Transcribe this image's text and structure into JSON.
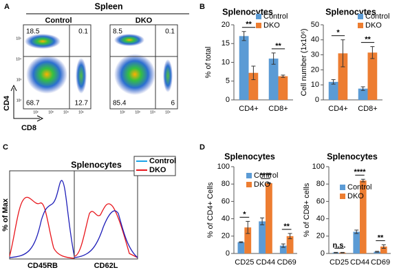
{
  "panel_labels": [
    "A",
    "B",
    "C",
    "D"
  ],
  "flow": {
    "title": "Spleen",
    "x_label": "CD8",
    "y_label": "CD4",
    "axis_ticks": [
      "10²",
      "10³",
      "10⁴",
      "10⁵"
    ],
    "samples": [
      {
        "name": "Control",
        "quadrants": [
          18.5,
          0.1,
          68.7,
          12.7
        ]
      },
      {
        "name": "DKO",
        "quadrants": [
          8.5,
          0.1,
          85.4,
          6
        ]
      }
    ]
  },
  "histogram": {
    "title": "Splenocytes",
    "x_labels": [
      "CD45RB",
      "CD62L"
    ],
    "y_label": "% of Max",
    "legend": [
      {
        "name": "Control",
        "color": "#1aa3e8"
      },
      {
        "name": "DKO",
        "color": "#e8151b"
      }
    ]
  },
  "chart_data": [
    {
      "type": "bar",
      "title": "Splenocytes",
      "y_label": "% of total",
      "categories": [
        "CD4+",
        "CD8+"
      ],
      "series": [
        {
          "name": "Control",
          "color": "#5b9bd5",
          "values": [
            17,
            11
          ],
          "errors": [
            1.2,
            1.5
          ]
        },
        {
          "name": "DKO",
          "color": "#ed7d31",
          "values": [
            7.2,
            6.3
          ],
          "errors": [
            1.8,
            0.3
          ]
        }
      ],
      "ylim": [
        0,
        20
      ],
      "yticks": [
        0,
        5,
        10,
        15,
        20
      ],
      "annotations": [
        "**",
        "**"
      ]
    },
    {
      "type": "bar",
      "title": "Splenocytes",
      "y_label": "Cell number (1x10⁶)",
      "categories": [
        "CD4+",
        "CD8+"
      ],
      "series": [
        {
          "name": "Control",
          "color": "#5b9bd5",
          "values": [
            12,
            7.5
          ],
          "errors": [
            1.5,
            1.2
          ]
        },
        {
          "name": "DKO",
          "color": "#ed7d31",
          "values": [
            31,
            31.5
          ],
          "errors": [
            9,
            4
          ]
        }
      ],
      "ylim": [
        0,
        50
      ],
      "yticks": [
        0,
        10,
        20,
        30,
        40,
        50
      ],
      "annotations": [
        "*",
        "**"
      ]
    },
    {
      "type": "bar",
      "title": "Splenocytes",
      "y_label": "% of  CD4+ Cells",
      "categories": [
        "CD25",
        "CD44",
        "CD69"
      ],
      "series": [
        {
          "name": "Control",
          "color": "#5b9bd5",
          "values": [
            13,
            37,
            9
          ],
          "errors": [
            0.5,
            4,
            2
          ]
        },
        {
          "name": "DKO",
          "color": "#ed7d31",
          "values": [
            30,
            81,
            20
          ],
          "errors": [
            7,
            0.5,
            3
          ]
        }
      ],
      "ylim": [
        0,
        100
      ],
      "yticks": [
        0,
        20,
        40,
        60,
        80,
        100
      ],
      "annotations": [
        "*",
        "****",
        "**"
      ]
    },
    {
      "type": "bar",
      "title": "Splenocytes",
      "y_label": "% of CD8+ cells",
      "categories": [
        "CD25",
        "CD44",
        "CD69"
      ],
      "series": [
        {
          "name": "Control",
          "color": "#5b9bd5",
          "values": [
            1,
            25,
            2
          ],
          "errors": [
            0.3,
            2,
            0.5
          ]
        },
        {
          "name": "DKO",
          "color": "#ed7d31",
          "values": [
            1,
            84,
            8
          ],
          "errors": [
            0.3,
            1.5,
            2
          ]
        }
      ],
      "ylim": [
        0,
        100
      ],
      "yticks": [
        0,
        20,
        40,
        60,
        80,
        100
      ],
      "annotations": [
        "n.s.",
        "****",
        "**"
      ]
    }
  ]
}
